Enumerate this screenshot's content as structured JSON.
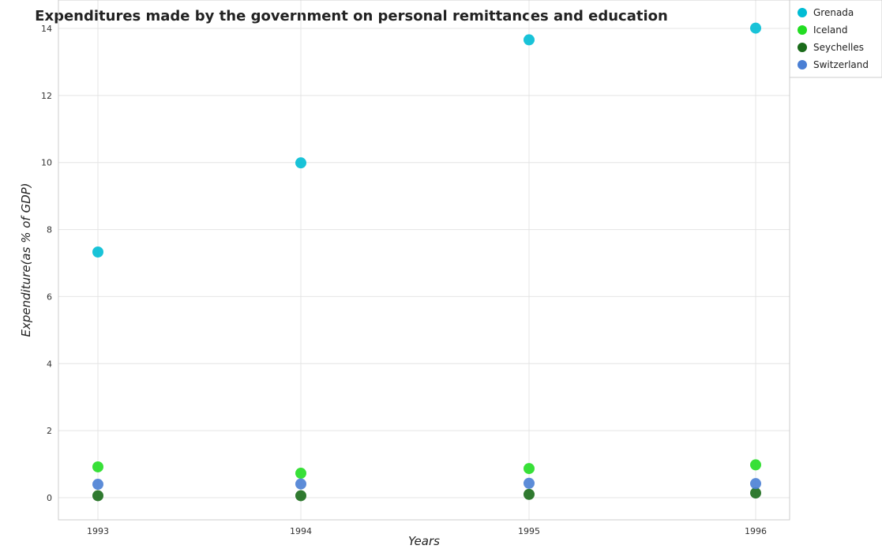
{
  "chart_data": {
    "type": "scatter",
    "title": "Expenditures made by the government on personal remittances and education",
    "xlabel": "Years",
    "ylabel": "Expenditure(as % of GDP)",
    "categories": [
      "1993",
      "1994",
      "1995",
      "1996"
    ],
    "ylim": [
      0,
      15
    ],
    "yticks": [
      0,
      2,
      4,
      6,
      8,
      10,
      12,
      14
    ],
    "grid": true,
    "legend_position": "top-right",
    "series": [
      {
        "name": "Grenada",
        "color": "#00bcd4",
        "values": [
          7.33,
          9.99,
          13.66,
          14.01
        ]
      },
      {
        "name": "Iceland",
        "color": "#22dd22",
        "values": [
          0.92,
          0.73,
          0.87,
          0.98
        ]
      },
      {
        "name": "Seychelles",
        "color": "#1a6b1a",
        "values": [
          0.06,
          0.06,
          0.1,
          0.14
        ]
      },
      {
        "name": "Switzerland",
        "color": "#4a7fd4",
        "values": [
          0.4,
          0.41,
          0.43,
          0.42
        ]
      }
    ]
  }
}
